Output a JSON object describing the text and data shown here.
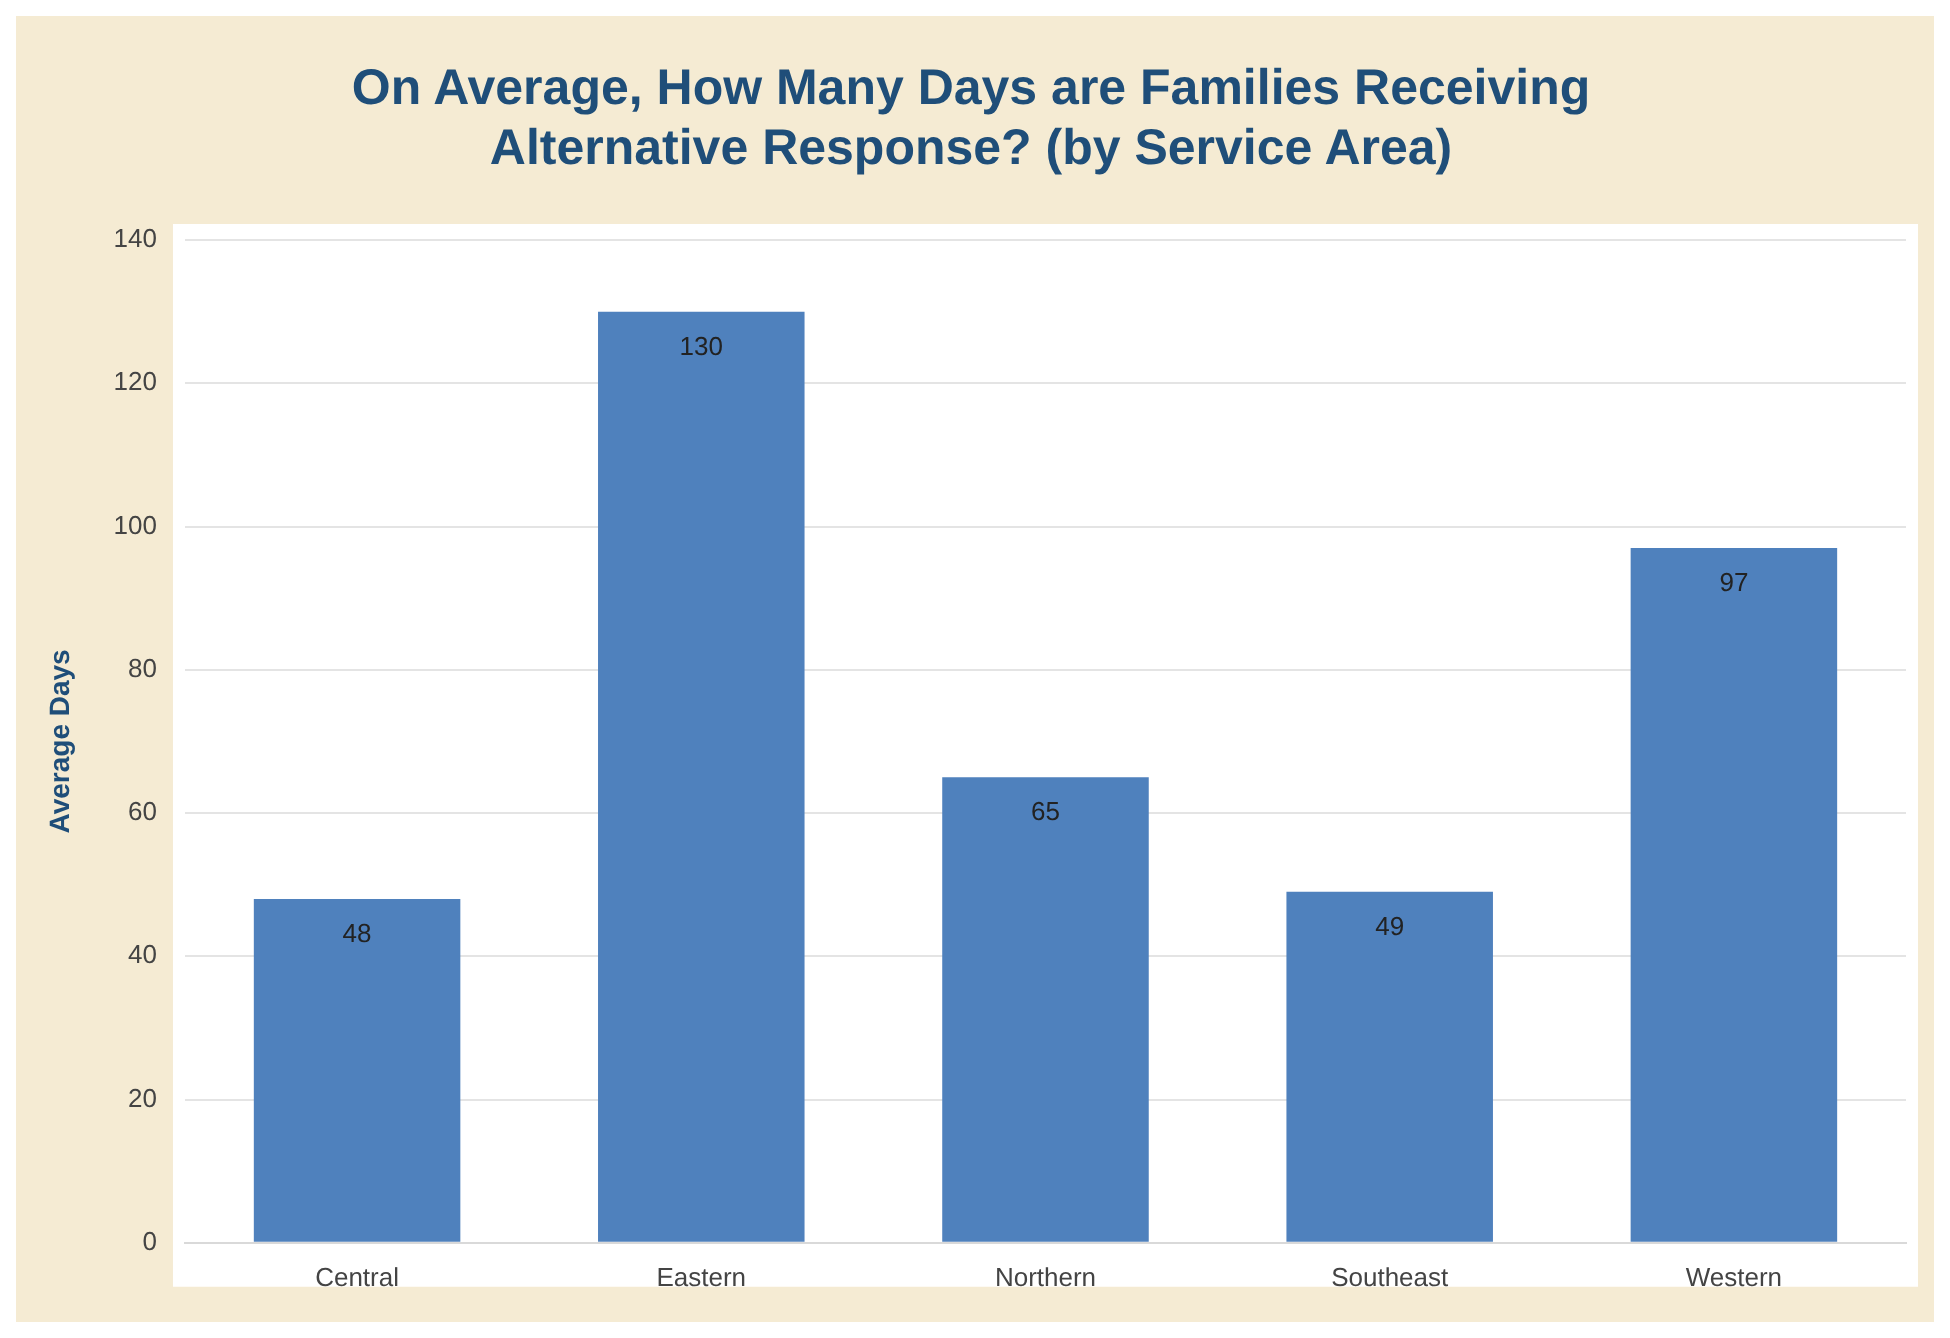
{
  "chart_data": {
    "type": "bar",
    "title": "On Average, How Many Days are Families Receiving Alternative Response? (by Service Area)",
    "ylabel": "Average Days",
    "categories": [
      "Central",
      "Eastern",
      "Northern",
      "Southeast",
      "Western"
    ],
    "values": [
      48,
      130,
      65,
      49,
      97
    ],
    "color": "#4f81bd",
    "ylim": [
      0,
      140
    ],
    "yticks": [
      0,
      20,
      40,
      60,
      80,
      100,
      120,
      140
    ],
    "grid": "y",
    "data_labels": true,
    "legend": false
  }
}
